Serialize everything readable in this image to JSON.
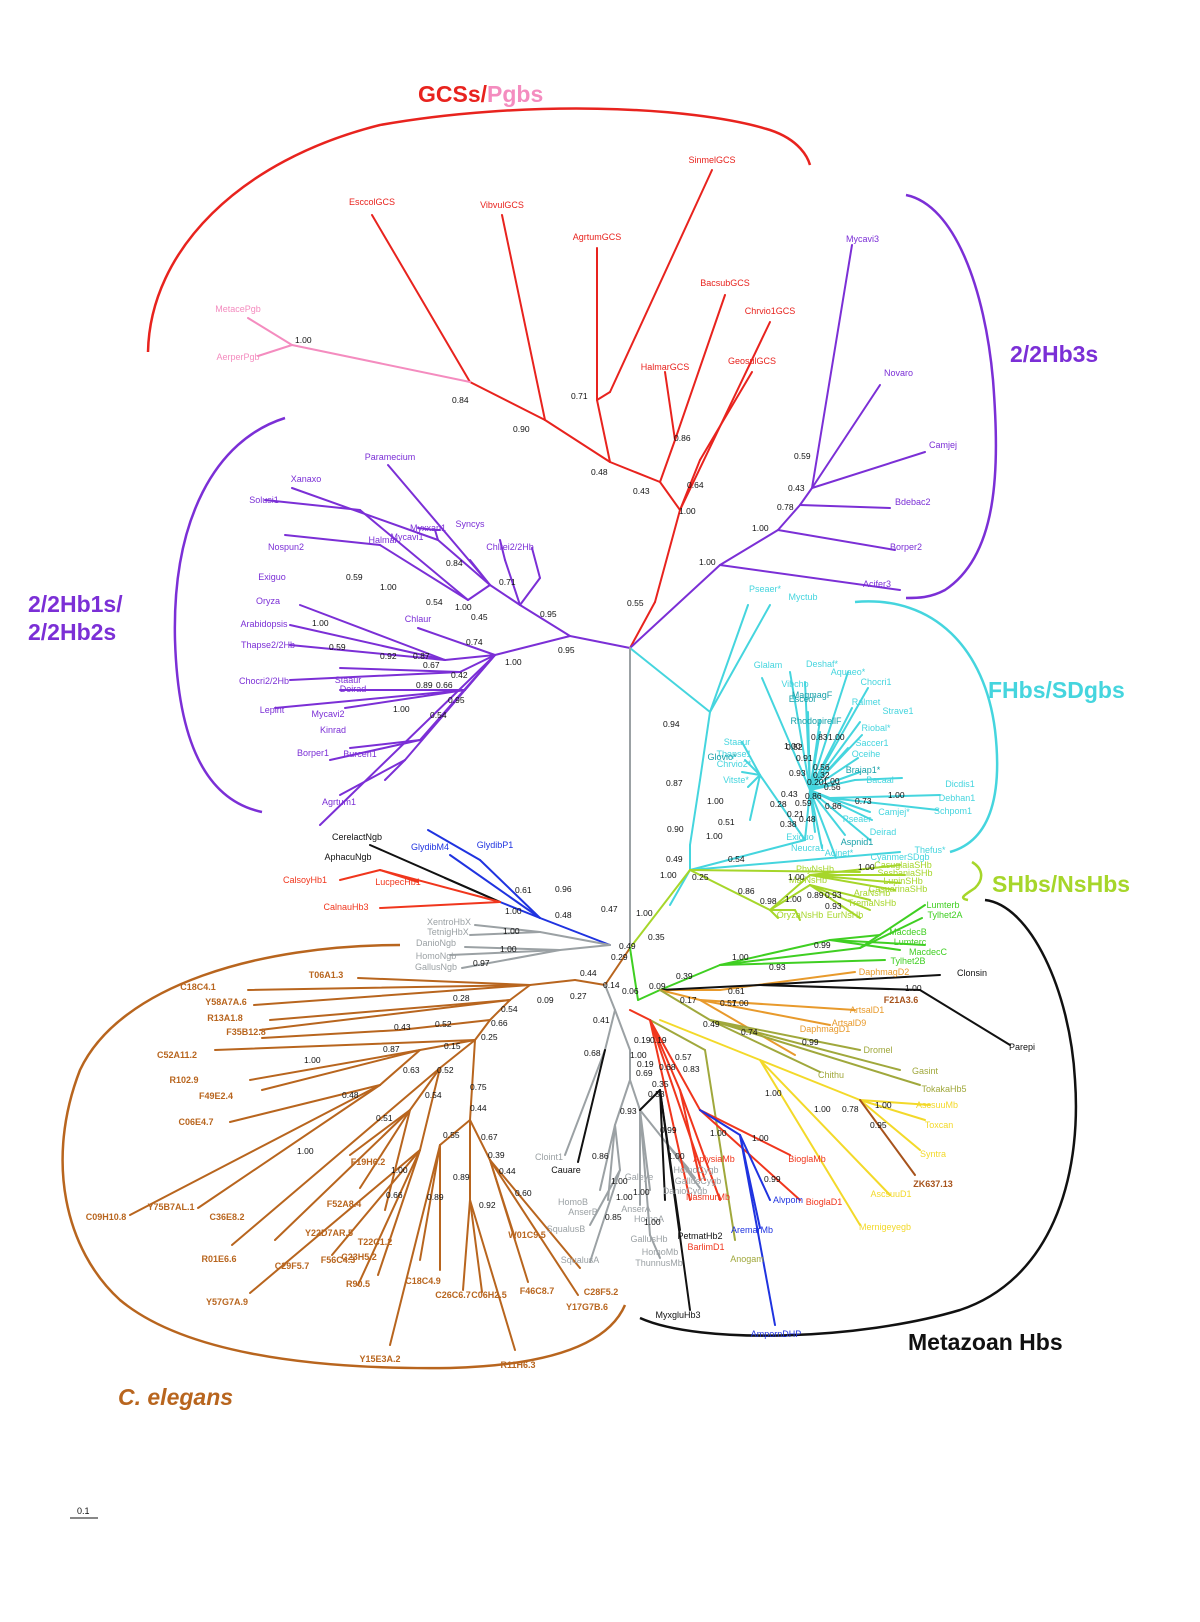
{
  "colors": {
    "gcs": "#e8231e",
    "pgb": "#f48cbf",
    "hb3": "#7b2fd6",
    "hb12": "#7b2fd6",
    "fhb": "#45d5de",
    "fhb_dark": "#17a0a8",
    "shb": "#a6d62a",
    "metazoan": "#111111",
    "celegans": "#b8651e",
    "gray": "#9ba1a4",
    "red": "#f0361d",
    "blue": "#1f33e0",
    "yellow": "#f3d92a",
    "olive": "#a0a83c",
    "orange": "#e89a2c",
    "green": "#3fcf22",
    "brown": "#a7531c"
  },
  "groups": {
    "gcs_label": "GCSs/",
    "pgb_label": "Pgbs",
    "hb3_label": "2/2Hb3s",
    "hb12_label_1": "2/2Hb1s/",
    "hb12_label_2": "2/2Hb2s",
    "fhb_label": "FHbs/SDgbs",
    "shb_label": "SHbs/NsHbs",
    "metazoan_label": "Metazoan Hbs",
    "celegans_label": "C. elegans"
  },
  "scale_bar": {
    "label": "0.1"
  },
  "taxa": {
    "gcs": [
      "EsccolGCS",
      "VibvulGCS",
      "AgrtumGCS",
      "SinmelGCS",
      "BacsubGCS",
      "Chrvio1GCS",
      "GeosulGCS",
      "HalmarGCS"
    ],
    "pgb": [
      "MetacePgb",
      "AerperPgb"
    ],
    "hb3": [
      "Mycavi3",
      "Novaro",
      "Camjej",
      "Bdebac2",
      "Borper2",
      "Acifer3"
    ],
    "hb12": [
      "Paramecium",
      "Xanaxo",
      "Solusi1",
      "Myxxan1",
      "Mycavi1",
      "Syncys",
      "Halmar",
      "Chlrei2/2Hb",
      "Nospun2",
      "Exiguo",
      "Oryza",
      "Arabidopsis",
      "Chlaur",
      "Thapse2/2Hb",
      "Chocri2/2Hb",
      "Staaur",
      "Deirad",
      "Lepint",
      "Mycavi2",
      "Kinrad",
      "Borper1",
      "Burcen1",
      "Agrtum1"
    ],
    "fhb": [
      "Pseaer*",
      "Myctub",
      "Glalam",
      "Deshaf*",
      "Aquaeo*",
      "Vibcho",
      "MagmagF",
      "Chocri1",
      "Esccol",
      "Ralmet",
      "RhodopirellF",
      "Strave1",
      "Staaur",
      "Riobal*",
      "Thapse1",
      "Saccer1",
      "Chrvio2*",
      "Glovio*",
      "Oceihe",
      "Vitste*",
      "Brajap1*",
      "Bacaal",
      "Dicdis1",
      "Debhan1",
      "Schpom1",
      "Camjej*",
      "Pseaer",
      "Deirad",
      "Exiguo",
      "Aspnid1",
      "Neucra1",
      "Acinet*",
      "Thefus*",
      "CyanmerSDgb"
    ],
    "shb": [
      "CasuglaiaSHb",
      "SesbaniaSHb",
      "LupinSHb",
      "CasuarinaSHb",
      "PhyNsHb",
      "MarNsHb",
      "AraNsHb",
      "TremaNsHb",
      "EurNsHb",
      "OryzaNsHb"
    ],
    "vertebrate": [
      {
        "name": "CerelactNgb",
        "c": "metazoan"
      },
      {
        "name": "AphacuNgb",
        "c": "metazoan"
      },
      {
        "name": "GlydibM4",
        "c": "blue"
      },
      {
        "name": "GlydibP1",
        "c": "blue"
      },
      {
        "name": "CalsoyHb1",
        "c": "red"
      },
      {
        "name": "LucpecHb1",
        "c": "red"
      },
      {
        "name": "CalnauHb3",
        "c": "red"
      },
      {
        "name": "XentroHbX",
        "c": "gray"
      },
      {
        "name": "TetnigHbX",
        "c": "gray"
      },
      {
        "name": "DanioNgb",
        "c": "gray"
      },
      {
        "name": "HomoNgb",
        "c": "gray"
      },
      {
        "name": "GallusNgb",
        "c": "gray"
      }
    ],
    "lower_center": [
      {
        "name": "Cloint1",
        "c": "gray"
      },
      {
        "name": "Cauare",
        "c": "metazoan"
      },
      {
        "name": "HomoB",
        "c": "gray"
      },
      {
        "name": "AnserB",
        "c": "gray"
      },
      {
        "name": "Galeye",
        "c": "gray"
      },
      {
        "name": "HomoCygb",
        "c": "gray"
      },
      {
        "name": "GallusCygb",
        "c": "gray"
      },
      {
        "name": "DanioCygb",
        "c": "gray"
      },
      {
        "name": "AnserA",
        "c": "gray"
      },
      {
        "name": "HomoA",
        "c": "gray"
      },
      {
        "name": "GallusHb",
        "c": "gray"
      },
      {
        "name": "SqualusB",
        "c": "gray"
      },
      {
        "name": "SqualusA",
        "c": "gray"
      },
      {
        "name": "ThunnusMb",
        "c": "gray"
      },
      {
        "name": "HomoMb",
        "c": "gray"
      },
      {
        "name": "PetmatHb2",
        "c": "metazoan"
      },
      {
        "name": "BarlimD1",
        "c": "red"
      },
      {
        "name": "NasmurMb",
        "c": "red"
      },
      {
        "name": "Anogam",
        "c": "olive"
      },
      {
        "name": "AplysiaMb",
        "c": "red"
      },
      {
        "name": "BioglaMb",
        "c": "red"
      },
      {
        "name": "BioglaD1",
        "c": "red"
      },
      {
        "name": "Alvpom",
        "c": "blue"
      },
      {
        "name": "AremarMb",
        "c": "blue"
      },
      {
        "name": "AmpornDHP",
        "c": "blue"
      },
      {
        "name": "MyxgluHb3",
        "c": "metazoan"
      }
    ],
    "lower_right": [
      {
        "name": "Lumterb",
        "c": "green"
      },
      {
        "name": "Tylhet2A",
        "c": "green"
      },
      {
        "name": "MacdecB",
        "c": "green"
      },
      {
        "name": "Lumterc",
        "c": "green"
      },
      {
        "name": "MacdecC",
        "c": "green"
      },
      {
        "name": "Tylhet2B",
        "c": "green"
      },
      {
        "name": "DaphmagD2",
        "c": "orange"
      },
      {
        "name": "Clonsin",
        "c": "metazoan"
      },
      {
        "name": "F21A3.6",
        "c": "brown"
      },
      {
        "name": "ArtsalD1",
        "c": "orange"
      },
      {
        "name": "ArtsalD9",
        "c": "orange"
      },
      {
        "name": "DaphmagD1",
        "c": "orange"
      },
      {
        "name": "Parepi",
        "c": "metazoan"
      },
      {
        "name": "Dromel",
        "c": "olive"
      },
      {
        "name": "Chithu",
        "c": "olive"
      },
      {
        "name": "Gasint",
        "c": "olive"
      },
      {
        "name": "TokakaHb5",
        "c": "olive"
      },
      {
        "name": "AscsuuMb",
        "c": "yellow"
      },
      {
        "name": "Toxcan",
        "c": "yellow"
      },
      {
        "name": "Syntra",
        "c": "yellow"
      },
      {
        "name": "ZK637.13",
        "c": "brown"
      },
      {
        "name": "AscsuuD1",
        "c": "yellow"
      },
      {
        "name": "Mernigeyegb",
        "c": "yellow"
      }
    ],
    "celegans": [
      "T06A1.3",
      "C18C4.1",
      "Y58A7A.6",
      "R13A1.8",
      "F35B12.8",
      "C52A11.2",
      "R102.9",
      "F49E2.4",
      "C06E4.7",
      "C09H10.8",
      "Y75B7AL.1",
      "C36E8.2",
      "R01E6.6",
      "F19H6.2",
      "F52A8.4",
      "Y22D7AR.5",
      "C29F5.7",
      "F56C4.3",
      "T22C1.2",
      "C23H5.2",
      "Y57G7A.9",
      "R90.5",
      "C18C4.9",
      "C26C6.7",
      "C06H2.5",
      "W01C9.5",
      "F46C8.7",
      "C28F5.2",
      "Y17G7B.6",
      "Y15E3A.2",
      "R11H6.3"
    ]
  },
  "support": {
    "gcs": [
      "1.00",
      "0.84",
      "0.90",
      "0.71",
      "0.48",
      "0.43",
      "0.86",
      "0.64",
      "1.00",
      "0.55"
    ],
    "hb3": [
      "0.59",
      "0.43",
      "0.78",
      "1.00",
      "1.00"
    ],
    "hb12": [
      "0.59",
      "1.00",
      "0.84",
      "0.54",
      "1.00",
      "0.71",
      "0.45",
      "0.95",
      "0.74",
      "1.00",
      "0.59",
      "0.92",
      "0.87",
      "0.67",
      "0.42",
      "0.89",
      "0.66",
      "0.95",
      "1.00",
      "0.54",
      "0.95",
      "1.00"
    ],
    "fhb": [
      "0.94",
      "0.87",
      "0.90",
      "0.49",
      "1.00",
      "0.54",
      "0.25",
      "1.00",
      "0.51",
      "1.00",
      "1.00",
      "0.91",
      "0.93",
      "0.83",
      "1.00",
      "0.52",
      "0.56",
      "0.32",
      "0.20",
      "0.56",
      "0.43",
      "0.86",
      "0.28",
      "0.59",
      "0.21",
      "0.48",
      "0.38",
      "0.86",
      "0.73",
      "1.00",
      "1.00"
    ],
    "shb": [
      "1.00",
      "0.86",
      "0.98",
      "1.00",
      "0.89",
      "0.93",
      "0.93",
      "1.00"
    ],
    "vertebrate": [
      "0.96",
      "0.61",
      "0.47",
      "1.00",
      "1.00",
      "0.48",
      "1.00",
      "1.00",
      "0.97",
      "0.35",
      "0.49",
      "0.29"
    ],
    "center": [
      "0.44",
      "0.27",
      "0.09",
      "0.14",
      "0.06",
      "0.28",
      "0.54",
      "0.66",
      "0.25",
      "0.43",
      "0.52",
      "0.15",
      "0.87",
      "1.00",
      "0.63",
      "0.52",
      "0.48",
      "0.51",
      "0.54",
      "0.75",
      "0.44",
      "0.55",
      "0.67",
      "1.00",
      "1.00",
      "0.66",
      "0.89",
      "0.89",
      "0.39",
      "0.44",
      "0.92",
      "0.60"
    ],
    "lower": [
      "0.41",
      "0.68",
      "1.00",
      "0.69",
      "0.53",
      "0.93",
      "0.99",
      "0.86",
      "1.00",
      "1.00",
      "0.85",
      "1.00",
      "1.00",
      "1.00",
      "0.19",
      "0.19",
      "0.68",
      "0.35",
      "0.83",
      "1.00",
      "1.00",
      "0.99",
      "0.39",
      "0.09",
      "0.17",
      "0.61",
      "0.57",
      "0.93",
      "1.00",
      "0.99",
      "0.49",
      "0.74",
      "0.99",
      "0.57",
      "1.00",
      "1.00",
      "0.78",
      "1.00",
      "0.95",
      "0.19",
      "1.00",
      "1.00"
    ]
  }
}
